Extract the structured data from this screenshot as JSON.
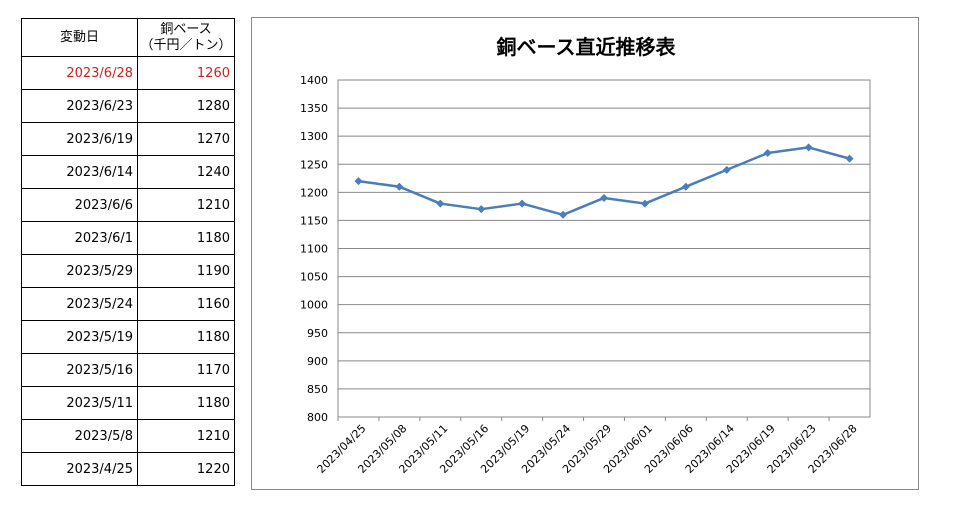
{
  "table": {
    "header_date": "変動日",
    "header_price_line1": "銅ベース",
    "header_price_line2": "（千円／トン）",
    "rows": [
      {
        "date": "2023/6/28",
        "price": "1260"
      },
      {
        "date": "2023/6/23",
        "price": "1280"
      },
      {
        "date": "2023/6/19",
        "price": "1270"
      },
      {
        "date": "2023/6/14",
        "price": "1240"
      },
      {
        "date": "2023/6/6",
        "price": "1210"
      },
      {
        "date": "2023/6/1",
        "price": "1180"
      },
      {
        "date": "2023/5/29",
        "price": "1190"
      },
      {
        "date": "2023/5/24",
        "price": "1160"
      },
      {
        "date": "2023/5/19",
        "price": "1180"
      },
      {
        "date": "2023/5/16",
        "price": "1170"
      },
      {
        "date": "2023/5/11",
        "price": "1180"
      },
      {
        "date": "2023/5/8",
        "price": "1210"
      },
      {
        "date": "2023/4/25",
        "price": "1220"
      }
    ]
  },
  "chart_data": {
    "type": "line",
    "title": "銅ベース直近推移表",
    "categories": [
      "2023/04/25",
      "2023/05/08",
      "2023/05/11",
      "2023/05/16",
      "2023/05/19",
      "2023/05/24",
      "2023/05/29",
      "2023/06/01",
      "2023/06/06",
      "2023/06/14",
      "2023/06/19",
      "2023/06/23",
      "2023/06/28"
    ],
    "series": [
      {
        "values": [
          1220,
          1210,
          1180,
          1170,
          1180,
          1160,
          1190,
          1180,
          1210,
          1240,
          1270,
          1280,
          1260
        ]
      }
    ],
    "ylim": [
      800,
      1400
    ],
    "ytick_step": 50,
    "grid": true,
    "legend": "none",
    "line_color": "#4a7ebb"
  }
}
